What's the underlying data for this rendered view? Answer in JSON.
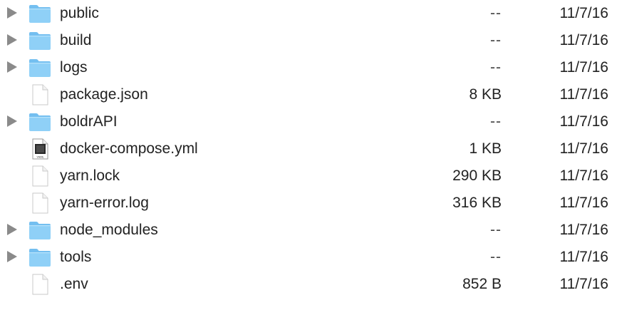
{
  "items": [
    {
      "name": "public",
      "kind": "folder",
      "icon": "folder-icon",
      "size": "--",
      "date": "11/7/16"
    },
    {
      "name": "build",
      "kind": "folder",
      "icon": "folder-icon",
      "size": "--",
      "date": "11/7/16"
    },
    {
      "name": "logs",
      "kind": "folder",
      "icon": "folder-icon",
      "size": "--",
      "date": "11/7/16"
    },
    {
      "name": "package.json",
      "kind": "file",
      "icon": "document-icon",
      "size": "8 KB",
      "date": "11/7/16"
    },
    {
      "name": "boldrAPI",
      "kind": "folder",
      "icon": "folder-icon",
      "size": "--",
      "date": "11/7/16"
    },
    {
      "name": "docker-compose.yml",
      "kind": "yaml",
      "icon": "yaml-file-icon",
      "badge": "YAML",
      "size": "1 KB",
      "date": "11/7/16"
    },
    {
      "name": "yarn.lock",
      "kind": "file",
      "icon": "document-icon",
      "size": "290 KB",
      "date": "11/7/16"
    },
    {
      "name": "yarn-error.log",
      "kind": "file",
      "icon": "document-icon",
      "size": "316 KB",
      "date": "11/7/16"
    },
    {
      "name": "node_modules",
      "kind": "folder",
      "icon": "folder-icon",
      "size": "--",
      "date": "11/7/16"
    },
    {
      "name": "tools",
      "kind": "folder",
      "icon": "folder-icon",
      "size": "--",
      "date": "11/7/16"
    },
    {
      "name": ".env",
      "kind": "file",
      "icon": "document-icon",
      "size": "852 B",
      "date": "11/7/16"
    }
  ],
  "colors": {
    "folder_body": "#8fd0f7",
    "folder_tab": "#74bff0",
    "disclosure": "#8a8a8a"
  }
}
